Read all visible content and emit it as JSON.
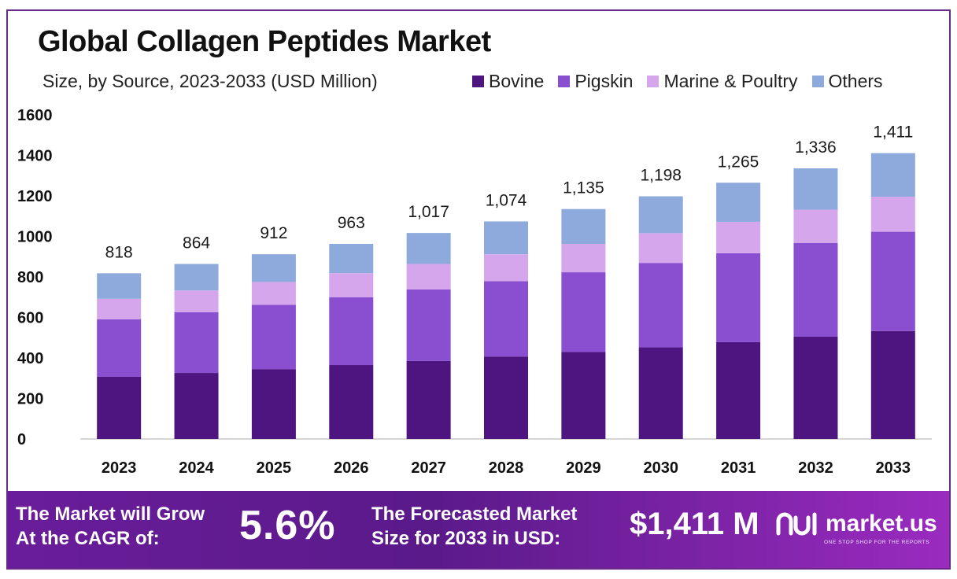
{
  "title": "Global Collagen Peptides Market",
  "subtitle": "Size, by Source, 2023-2033 (USD Million)",
  "colors": {
    "bovine": "#4e1581",
    "pigskin": "#8a4fd0",
    "marine": "#d6a6ec",
    "others": "#8eaadd",
    "frame": "#6a2a8c"
  },
  "legend": [
    {
      "name": "Bovine",
      "color": "#4e1581"
    },
    {
      "name": "Pigskin",
      "color": "#8a4fd0"
    },
    {
      "name": "Marine & Poultry",
      "color": "#d6a6ec"
    },
    {
      "name": "Others",
      "color": "#8eaadd"
    }
  ],
  "chart_data": {
    "type": "bar",
    "stacked": true,
    "title": "Global Collagen Peptides Market",
    "subtitle": "Size, by Source, 2023-2033 (USD Million)",
    "xlabel": "",
    "ylabel": "",
    "ylim": [
      0,
      1600
    ],
    "yticks": [
      "0",
      "200",
      "400",
      "600",
      "800",
      "1000",
      "1200",
      "1400",
      "1600"
    ],
    "grid": false,
    "legend_position": "top-right",
    "categories": [
      "2023",
      "2024",
      "2025",
      "2026",
      "2027",
      "2028",
      "2029",
      "2030",
      "2031",
      "2032",
      "2033"
    ],
    "series": [
      {
        "name": "Bovine",
        "values": [
          307,
          326,
          345,
          365,
          385,
          407,
          429,
          453,
          478,
          505,
          533
        ]
      },
      {
        "name": "Pigskin",
        "values": [
          284,
          300,
          317,
          335,
          353,
          372,
          394,
          416,
          439,
          463,
          490
        ]
      },
      {
        "name": "Marine & Poultry",
        "values": [
          101,
          107,
          113,
          119,
          126,
          133,
          140,
          147,
          155,
          164,
          173
        ]
      },
      {
        "name": "Others",
        "values": [
          126,
          131,
          137,
          144,
          153,
          162,
          172,
          182,
          193,
          204,
          215
        ]
      }
    ],
    "totals": [
      818,
      864,
      912,
      963,
      1017,
      1074,
      1135,
      1198,
      1265,
      1336,
      1411
    ],
    "total_labels": [
      "818",
      "864",
      "912",
      "963",
      "1,017",
      "1,074",
      "1,135",
      "1,198",
      "1,265",
      "1,336",
      "1,411"
    ]
  },
  "banner": {
    "cagr_label": "The Market will Grow\nAt the CAGR of:",
    "cagr_value": "5.6%",
    "forecast_label": "The Forecasted Market\nSize for 2033 in USD:",
    "forecast_value": "$1,411 M",
    "brand_name": "market.us",
    "brand_tagline": "ONE STOP SHOP FOR THE REPORTS"
  }
}
